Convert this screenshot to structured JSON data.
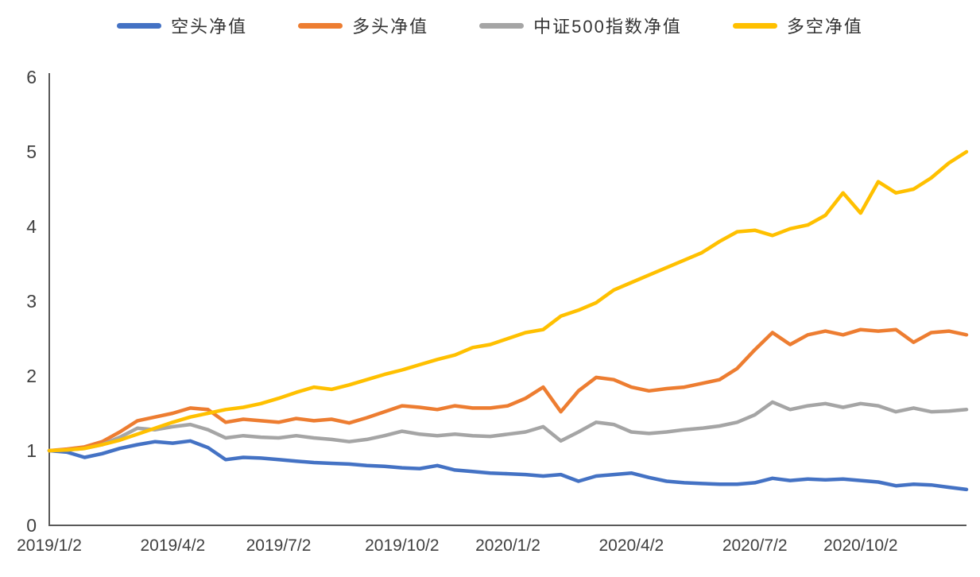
{
  "chart_data": {
    "type": "line",
    "title": "",
    "xlabel": "",
    "ylabel": "",
    "ylim": [
      0,
      6
    ],
    "y_ticks": [
      0,
      1,
      2,
      3,
      4,
      5,
      6
    ],
    "grid": false,
    "legend_position": "top",
    "x_tick_labels": [
      "2019/1/2",
      "2019/4/2",
      "2019/7/2",
      "2019/10/2",
      "2020/1/2",
      "2020/4/2",
      "2020/7/2",
      "2020/10/2"
    ],
    "x_tick_indices": [
      0,
      7,
      13,
      20,
      26,
      33,
      40,
      46
    ],
    "axis_color": "#595959",
    "series": [
      {
        "id": "short-net-value",
        "name": "空头净值",
        "color": "#4472C4",
        "values": [
          1.0,
          0.98,
          0.91,
          0.96,
          1.03,
          1.08,
          1.12,
          1.1,
          1.13,
          1.04,
          0.88,
          0.91,
          0.9,
          0.88,
          0.86,
          0.84,
          0.83,
          0.82,
          0.8,
          0.79,
          0.77,
          0.76,
          0.8,
          0.74,
          0.72,
          0.7,
          0.69,
          0.68,
          0.66,
          0.68,
          0.59,
          0.66,
          0.68,
          0.7,
          0.64,
          0.59,
          0.57,
          0.56,
          0.55,
          0.55,
          0.57,
          0.63,
          0.6,
          0.62,
          0.61,
          0.62,
          0.6,
          0.58,
          0.53,
          0.55,
          0.54,
          0.51,
          0.48
        ]
      },
      {
        "id": "long-net-value",
        "name": "多头净值",
        "color": "#ED7D31",
        "values": [
          1.0,
          1.02,
          1.05,
          1.12,
          1.25,
          1.4,
          1.45,
          1.5,
          1.57,
          1.55,
          1.38,
          1.42,
          1.4,
          1.38,
          1.43,
          1.4,
          1.42,
          1.37,
          1.44,
          1.52,
          1.6,
          1.58,
          1.55,
          1.6,
          1.57,
          1.57,
          1.6,
          1.7,
          1.85,
          1.52,
          1.8,
          1.98,
          1.95,
          1.85,
          1.8,
          1.83,
          1.85,
          1.9,
          1.95,
          2.1,
          2.35,
          2.58,
          2.42,
          2.55,
          2.6,
          2.55,
          2.62,
          2.6,
          2.62,
          2.45,
          2.58,
          2.6,
          2.55
        ]
      },
      {
        "id": "csi500-index-net-value",
        "name": "中证500指数净值",
        "color": "#A5A5A5",
        "values": [
          1.0,
          1.01,
          1.03,
          1.08,
          1.18,
          1.3,
          1.28,
          1.32,
          1.35,
          1.28,
          1.17,
          1.2,
          1.18,
          1.17,
          1.2,
          1.17,
          1.15,
          1.12,
          1.15,
          1.2,
          1.26,
          1.22,
          1.2,
          1.22,
          1.2,
          1.19,
          1.22,
          1.25,
          1.32,
          1.13,
          1.25,
          1.38,
          1.35,
          1.25,
          1.23,
          1.25,
          1.28,
          1.3,
          1.33,
          1.38,
          1.48,
          1.65,
          1.55,
          1.6,
          1.63,
          1.58,
          1.63,
          1.6,
          1.52,
          1.57,
          1.52,
          1.53,
          1.55
        ]
      },
      {
        "id": "long-short-net-value",
        "name": "多空净值",
        "color": "#FFC000",
        "values": [
          1.0,
          1.01,
          1.03,
          1.08,
          1.14,
          1.22,
          1.3,
          1.38,
          1.45,
          1.5,
          1.55,
          1.58,
          1.63,
          1.7,
          1.78,
          1.85,
          1.82,
          1.88,
          1.95,
          2.02,
          2.08,
          2.15,
          2.22,
          2.28,
          2.38,
          2.42,
          2.5,
          2.58,
          2.62,
          2.8,
          2.88,
          2.98,
          3.15,
          3.25,
          3.35,
          3.45,
          3.55,
          3.65,
          3.8,
          3.93,
          3.95,
          3.88,
          3.97,
          4.02,
          4.15,
          4.45,
          4.18,
          4.6,
          4.45,
          4.5,
          4.65,
          4.85,
          5.0
        ]
      }
    ]
  }
}
